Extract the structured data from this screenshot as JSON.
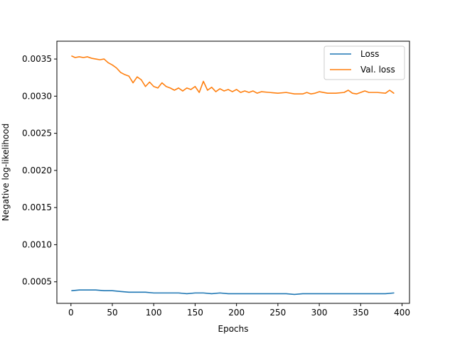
{
  "chart_data": {
    "type": "line",
    "title": "",
    "xlabel": "Epochs",
    "ylabel": "Negative log-likelihood",
    "xlim": [
      -17,
      409
    ],
    "ylim": [
      0.00021,
      0.00374
    ],
    "xticks": [
      0,
      50,
      100,
      150,
      200,
      250,
      300,
      350,
      400
    ],
    "xtick_labels": [
      "0",
      "50",
      "100",
      "150",
      "200",
      "250",
      "300",
      "350",
      "400"
    ],
    "yticks": [
      0.0005,
      0.001,
      0.0015,
      0.002,
      0.0025,
      0.003,
      0.0035
    ],
    "ytick_labels": [
      "0.0005",
      "0.0010",
      "0.0015",
      "0.0020",
      "0.0025",
      "0.0030",
      "0.0035"
    ],
    "grid": false,
    "legend_position": "top-right",
    "series": [
      {
        "name": "Loss",
        "color": "#1f77b4",
        "x": [
          1,
          10,
          20,
          30,
          40,
          50,
          60,
          70,
          80,
          90,
          100,
          110,
          120,
          130,
          140,
          150,
          160,
          170,
          180,
          190,
          200,
          210,
          220,
          230,
          240,
          250,
          260,
          270,
          280,
          290,
          300,
          310,
          320,
          330,
          340,
          350,
          360,
          370,
          380,
          390
        ],
        "y": [
          0.00038,
          0.00039,
          0.00039,
          0.00039,
          0.00038,
          0.00038,
          0.00037,
          0.00036,
          0.00036,
          0.00036,
          0.00035,
          0.00035,
          0.00035,
          0.00035,
          0.00034,
          0.00035,
          0.00035,
          0.00034,
          0.00035,
          0.00034,
          0.00034,
          0.00034,
          0.00034,
          0.00034,
          0.00034,
          0.00034,
          0.00034,
          0.00033,
          0.00034,
          0.00034,
          0.00034,
          0.00034,
          0.00034,
          0.00034,
          0.00034,
          0.00034,
          0.00034,
          0.00034,
          0.00034,
          0.00035
        ]
      },
      {
        "name": "Val. loss",
        "color": "#ff7f0e",
        "x": [
          1,
          5,
          10,
          15,
          20,
          25,
          30,
          35,
          40,
          45,
          50,
          55,
          60,
          65,
          70,
          75,
          80,
          85,
          90,
          95,
          100,
          105,
          110,
          115,
          120,
          125,
          130,
          135,
          140,
          145,
          150,
          155,
          160,
          165,
          170,
          175,
          180,
          185,
          190,
          195,
          200,
          205,
          210,
          215,
          220,
          225,
          230,
          240,
          250,
          260,
          270,
          280,
          285,
          290,
          295,
          300,
          310,
          320,
          330,
          335,
          340,
          345,
          350,
          355,
          360,
          370,
          380,
          385,
          390
        ],
        "y": [
          0.00354,
          0.00352,
          0.00353,
          0.00352,
          0.00353,
          0.00351,
          0.0035,
          0.00349,
          0.0035,
          0.00345,
          0.00342,
          0.00338,
          0.00332,
          0.00329,
          0.00327,
          0.00318,
          0.00326,
          0.00322,
          0.00313,
          0.00319,
          0.00313,
          0.00311,
          0.00318,
          0.00313,
          0.00311,
          0.00308,
          0.00311,
          0.00307,
          0.00311,
          0.00309,
          0.00313,
          0.00305,
          0.0032,
          0.00308,
          0.00312,
          0.00306,
          0.0031,
          0.00307,
          0.00309,
          0.00306,
          0.00309,
          0.00305,
          0.00307,
          0.00305,
          0.00307,
          0.00304,
          0.00306,
          0.00305,
          0.00304,
          0.00305,
          0.00303,
          0.00303,
          0.00305,
          0.00303,
          0.00304,
          0.00306,
          0.00304,
          0.00304,
          0.00305,
          0.00308,
          0.00304,
          0.00303,
          0.00305,
          0.00307,
          0.00305,
          0.00305,
          0.00304,
          0.00308,
          0.00304
        ]
      }
    ]
  }
}
